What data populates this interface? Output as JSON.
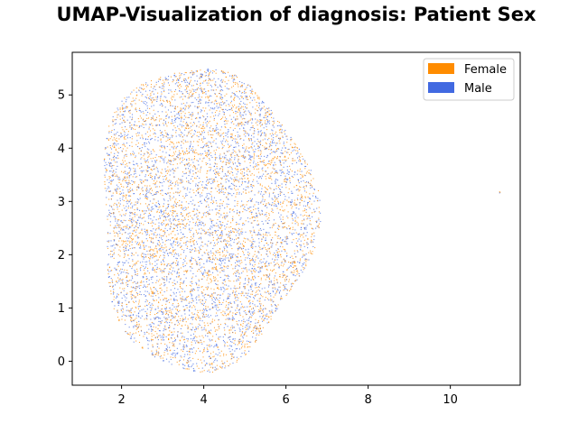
{
  "chart_data": {
    "type": "scatter",
    "title": "UMAP-Visualization of diagnosis: Patient Sex",
    "xlabel": "",
    "ylabel": "",
    "xlim": [
      0.8,
      11.7
    ],
    "ylim": [
      -0.45,
      5.8
    ],
    "x_ticks": [
      2,
      4,
      6,
      8,
      10
    ],
    "y_ticks": [
      0,
      1,
      2,
      3,
      4,
      5
    ],
    "grid": false,
    "legend_position": "top-right",
    "series": [
      {
        "name": "Female",
        "color": "#ff8c00",
        "main_cluster": {
          "center": [
            4.0,
            2.7
          ],
          "radius_x": 2.6,
          "radius_y": 2.85,
          "approx_points": 3500
        },
        "outlier_points": [
          [
            11.2,
            3.18
          ],
          [
            11.21,
            3.17
          ]
        ]
      },
      {
        "name": "Male",
        "color": "#4169e1",
        "main_cluster": {
          "center": [
            4.0,
            2.7
          ],
          "radius_x": 2.6,
          "radius_y": 2.85,
          "approx_points": 3500
        },
        "outlier_points": [
          [
            11.2,
            3.16
          ]
        ]
      }
    ]
  }
}
